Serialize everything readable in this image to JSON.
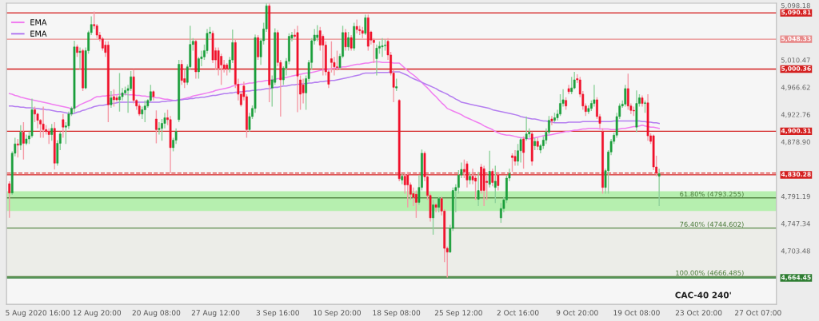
{
  "chart_data": {
    "type": "candlestick",
    "categories": [
      null,
      null,
      null,
      null,
      null,
      null,
      null,
      null,
      null,
      null,
      "5 Aug 2020 16:00",
      null,
      null,
      null,
      null,
      null,
      null,
      null,
      null,
      null,
      null,
      null,
      null,
      null,
      null,
      null,
      null,
      null,
      null,
      null,
      null,
      "12 Aug 20:00",
      null,
      null,
      null,
      null,
      null,
      null,
      null,
      null,
      null,
      null,
      null,
      null,
      null,
      null,
      null,
      null,
      null,
      null,
      null,
      null,
      "20 Aug 08:00",
      null,
      null,
      null,
      null,
      null,
      null,
      null,
      null,
      null,
      null,
      null,
      null,
      null,
      null,
      null,
      null,
      null,
      null,
      null,
      null,
      "27 Aug 12:00",
      null,
      null,
      null,
      null,
      null,
      null,
      null,
      null,
      null,
      null,
      null,
      null,
      null,
      null,
      null,
      null,
      null,
      null,
      null,
      null,
      null,
      "3 Sep 16:00",
      null,
      null,
      null,
      null,
      null,
      null,
      null,
      null,
      null,
      null,
      null,
      null,
      null,
      null,
      null,
      null,
      null,
      null,
      null,
      null,
      "10 Sep 20:00",
      null,
      null,
      null,
      null,
      null,
      null,
      null,
      null,
      null,
      null,
      null,
      null,
      null,
      null,
      null,
      null,
      null,
      null,
      null,
      null,
      "18 Sep 08:00",
      null,
      null,
      null,
      null,
      null,
      null,
      null,
      null,
      null,
      null,
      null,
      null,
      null,
      null,
      null,
      null,
      null,
      null,
      null,
      null,
      null,
      "25 Sep 12:00",
      null,
      null,
      null,
      null,
      null,
      null,
      null,
      null,
      null,
      null,
      null,
      null,
      null,
      null,
      null,
      null,
      null,
      null,
      null,
      null,
      "2 Oct 16:00",
      null,
      null,
      null,
      null,
      null,
      null,
      null,
      null,
      null,
      null,
      null,
      null,
      null,
      null,
      null,
      null,
      null,
      null,
      null,
      null,
      "9 Oct 20:00",
      null,
      null,
      null,
      null,
      null,
      null,
      null,
      null,
      null,
      null,
      null,
      null,
      null,
      null,
      null,
      null,
      null,
      null,
      null,
      null,
      "19 Oct 08:00",
      null,
      null,
      null,
      null,
      null,
      null,
      null,
      null,
      null,
      null,
      null,
      null,
      null,
      null,
      null,
      null,
      null,
      null,
      null,
      null,
      null,
      "23 Oct 20:00",
      null,
      null,
      null,
      null,
      null,
      null,
      null,
      null,
      null,
      null,
      null,
      null,
      null,
      null,
      null,
      null,
      null,
      null,
      null,
      null,
      "27 Oct 07:00",
      null,
      null,
      null,
      null,
      null,
      null
    ],
    "ohlc": [
      [
        4816,
        4820,
        4761,
        4801
      ],
      [
        4801,
        4868,
        4798,
        4865
      ],
      [
        4865,
        4890,
        4860,
        4880
      ],
      [
        4880,
        4888,
        4858,
        4878
      ],
      [
        4878,
        4910,
        4870,
        4899
      ],
      [
        4899,
        4915,
        4855,
        4881
      ],
      [
        4881,
        4895,
        4878,
        4888
      ],
      [
        4888,
        4900,
        4880,
        4893
      ],
      [
        4893,
        4953,
        4890,
        4935
      ],
      [
        4935,
        4940,
        4915,
        4928
      ],
      [
        4928,
        4930,
        4905,
        4918
      ],
      [
        4918,
        4920,
        4890,
        4912
      ],
      [
        4912,
        4940,
        4890,
        4903
      ],
      [
        4903,
        4910,
        4895,
        4900
      ],
      [
        4900,
        4905,
        4880,
        4895
      ],
      [
        4895,
        4912,
        4885,
        4905
      ],
      [
        4905,
        4915,
        4839,
        4849
      ],
      [
        4849,
        4886,
        4845,
        4881
      ],
      [
        4881,
        4900,
        4870,
        4896
      ],
      [
        4919,
        4928,
        4890,
        4907
      ],
      [
        4907,
        4915,
        4880,
        4909
      ],
      [
        4909,
        4932,
        4904,
        4928
      ],
      [
        4928,
        4940,
        4925,
        4937
      ],
      [
        4937,
        5046,
        4930,
        5036
      ],
      [
        5036,
        5040,
        5020,
        5027
      ],
      [
        5027,
        5035,
        5000,
        5029
      ],
      [
        5030,
        5033,
        4965,
        4970
      ],
      [
        4970,
        5035,
        4968,
        5030
      ],
      [
        5030,
        5062,
        5025,
        5059
      ],
      [
        5059,
        5085,
        5055,
        5072
      ],
      [
        5072,
        5093,
        5065,
        5070
      ],
      [
        5070,
        5073,
        5050,
        5055
      ],
      [
        5055,
        5060,
        5045,
        5049
      ],
      [
        5049,
        5052,
        5030,
        5034
      ],
      [
        5039,
        5045,
        5020,
        5027
      ],
      [
        5039,
        5045,
        4915,
        4943
      ],
      [
        4943,
        4965,
        4938,
        4954
      ],
      [
        4956,
        4968,
        4940,
        4951
      ],
      [
        4954,
        4958,
        4948,
        4951
      ],
      [
        4951,
        4994,
        4932,
        4956
      ],
      [
        4956,
        4970,
        4950,
        4962
      ],
      [
        4962,
        4972,
        4958,
        4966
      ],
      [
        4966,
        4975,
        4930,
        4969
      ],
      [
        4969,
        4997,
        4965,
        4988
      ],
      [
        4988,
        5000,
        4945,
        4950
      ],
      [
        4950,
        4952,
        4935,
        4941
      ],
      [
        4941,
        4945,
        4925,
        4928
      ],
      [
        4928,
        4940,
        4920,
        4935
      ],
      [
        4935,
        4950,
        4915,
        4941
      ],
      [
        4941,
        4952,
        4938,
        4950
      ],
      [
        4950,
        4975,
        4948,
        4964
      ],
      [
        4964,
        4966,
        4950,
        4956
      ],
      [
        4920,
        4934,
        4881,
        4903
      ],
      [
        4903,
        4915,
        4895,
        4905
      ],
      [
        4905,
        4920,
        4885,
        4913
      ],
      [
        4913,
        4930,
        4905,
        4922
      ],
      [
        4922,
        4935,
        4910,
        4919
      ],
      [
        4919,
        4925,
        4833,
        4874
      ],
      [
        4874,
        4890,
        4868,
        4886
      ],
      [
        4886,
        4905,
        4880,
        4900
      ],
      [
        4919,
        5015,
        4915,
        5008
      ],
      [
        5008,
        5015,
        4975,
        4982
      ],
      [
        4985,
        5000,
        4970,
        4979
      ],
      [
        4979,
        5008,
        4975,
        5004
      ],
      [
        5004,
        5070,
        5000,
        5040
      ],
      [
        5040,
        5050,
        5030,
        5045
      ],
      [
        5045,
        5048,
        4985,
        4996
      ],
      [
        4996,
        5020,
        4985,
        5017
      ],
      [
        5017,
        5030,
        5005,
        5020
      ],
      [
        5020,
        5040,
        5015,
        5030
      ],
      [
        5030,
        5065,
        5025,
        5058
      ],
      [
        5058,
        5068,
        5050,
        5060
      ],
      [
        5058,
        5062,
        5010,
        5015
      ],
      [
        5030,
        5035,
        5000,
        5015
      ],
      [
        5030,
        5035,
        4990,
        5002
      ],
      [
        5021,
        5025,
        4975,
        5007
      ],
      [
        5007,
        5015,
        4995,
        5001
      ],
      [
        5007,
        5010,
        4990,
        5001
      ],
      [
        5001,
        5020,
        4995,
        5015
      ],
      [
        5015,
        5064,
        5010,
        5043
      ],
      [
        5043,
        5048,
        4970,
        4976
      ],
      [
        4976,
        4985,
        4950,
        4960
      ],
      [
        4960,
        4965,
        4940,
        4943
      ],
      [
        4973,
        4980,
        4950,
        4956
      ],
      [
        4956,
        4960,
        4890,
        4903
      ],
      [
        4903,
        4930,
        4900,
        4924
      ],
      [
        4924,
        4942,
        4920,
        4937
      ],
      [
        4937,
        5056,
        4930,
        5051
      ],
      [
        5051,
        5055,
        5015,
        5020
      ],
      [
        5020,
        5050,
        5007,
        5046
      ],
      [
        5046,
        5075,
        5040,
        5065
      ],
      [
        5065,
        5106,
        5060,
        5102
      ],
      [
        5102,
        5106,
        4947,
        4975
      ],
      [
        4970,
        4990,
        4940,
        4983
      ],
      [
        4979,
        5066,
        4975,
        5059
      ],
      [
        5059,
        5063,
        5005,
        5011
      ],
      [
        5011,
        5015,
        4924,
        4983
      ],
      [
        4983,
        5005,
        4975,
        5002
      ],
      [
        5002,
        5018,
        4990,
        5013
      ],
      [
        5013,
        5058,
        5008,
        5053
      ],
      [
        5050,
        5060,
        5045,
        5055
      ],
      [
        5055,
        5065,
        5050,
        5053
      ],
      [
        5059,
        5070,
        4931,
        4989
      ],
      [
        4983,
        4990,
        4935,
        4960
      ],
      [
        4975,
        4985,
        4945,
        4962
      ],
      [
        4962,
        4990,
        4935,
        4985
      ],
      [
        4985,
        5015,
        4980,
        5011
      ],
      [
        5011,
        5050,
        5000,
        5046
      ],
      [
        5046,
        5065,
        5040,
        5055
      ],
      [
        5051,
        5071,
        5045,
        5055
      ],
      [
        5062,
        5068,
        5030,
        5039
      ],
      [
        5053,
        5056,
        4990,
        5039
      ],
      [
        5039,
        5045,
        4990,
        4996
      ],
      [
        4996,
        5000,
        4970,
        4976
      ],
      [
        5017,
        5045,
        4995,
        5011
      ],
      [
        5011,
        5020,
        4990,
        5004
      ],
      [
        5004,
        5030,
        4998,
        5003
      ],
      [
        5003,
        5025,
        5000,
        5021
      ],
      [
        5021,
        5070,
        5018,
        5059
      ],
      [
        5059,
        5065,
        5030,
        5036
      ],
      [
        5036,
        5060,
        5030,
        5051
      ],
      [
        5051,
        5055,
        5030,
        5034
      ],
      [
        5034,
        5075,
        5030,
        5069
      ],
      [
        5069,
        5080,
        5058,
        5064
      ],
      [
        5064,
        5070,
        5055,
        5062
      ],
      [
        5062,
        5068,
        5050,
        5058
      ],
      [
        5058,
        5088,
        5055,
        5083
      ],
      [
        5083,
        5088,
        5030,
        5037
      ],
      [
        5060,
        5062,
        5040,
        5047
      ],
      [
        5047,
        5050,
        5010,
        5043
      ],
      [
        5017,
        5040,
        4990,
        5034
      ],
      [
        5034,
        5045,
        5025,
        5037
      ],
      [
        5036,
        5050,
        5020,
        5038
      ],
      [
        5038,
        5048,
        5030,
        5039
      ],
      [
        5045,
        5050,
        5015,
        5023
      ],
      [
        5023,
        5028,
        4990,
        4994
      ],
      [
        4994,
        5000,
        4947,
        4971
      ],
      [
        4970,
        4985,
        4965,
        4972
      ],
      [
        4950,
        4952,
        4820,
        4824
      ],
      [
        4822,
        4832,
        4815,
        4828
      ],
      [
        4828,
        4832,
        4800,
        4814
      ],
      [
        4830,
        4835,
        4778,
        4814
      ],
      [
        4814,
        4818,
        4790,
        4799
      ],
      [
        4800,
        4810,
        4780,
        4794
      ],
      [
        4799,
        4805,
        4761,
        4786
      ],
      [
        4786,
        4830,
        4782,
        4810
      ],
      [
        4810,
        4871,
        4805,
        4865
      ],
      [
        4865,
        4868,
        4820,
        4827
      ],
      [
        4827,
        4830,
        4790,
        4797
      ],
      [
        4797,
        4800,
        4755,
        4761
      ],
      [
        4761,
        4790,
        4734,
        4782
      ],
      [
        4782,
        4785,
        4770,
        4778
      ],
      [
        4778,
        4795,
        4770,
        4792
      ],
      [
        4792,
        4795,
        4765,
        4772
      ],
      [
        4772,
        4775,
        4690,
        4712
      ],
      [
        4712,
        4715,
        4665,
        4706
      ],
      [
        4706,
        4750,
        4705,
        4744
      ],
      [
        4744,
        4810,
        4740,
        4805
      ],
      [
        4805,
        4815,
        4770,
        4810
      ],
      [
        4810,
        4838,
        4800,
        4830
      ],
      [
        4830,
        4850,
        4825,
        4839
      ],
      [
        4839,
        4855,
        4825,
        4835
      ],
      [
        4848,
        4852,
        4810,
        4822
      ],
      [
        4822,
        4835,
        4815,
        4828
      ],
      [
        4828,
        4840,
        4815,
        4822
      ],
      [
        4825,
        4830,
        4790,
        4820
      ],
      [
        4791,
        4835,
        4780,
        4805
      ],
      [
        4843,
        4848,
        4800,
        4805
      ],
      [
        4840,
        4845,
        4780,
        4805
      ],
      [
        4820,
        4830,
        4790,
        4818
      ],
      [
        4815,
        4869,
        4810,
        4836
      ],
      [
        4836,
        4840,
        4812,
        4818
      ],
      [
        4810,
        4845,
        4785,
        4820
      ],
      [
        4830,
        4835,
        4805,
        4813
      ],
      [
        4761,
        4785,
        4753,
        4776
      ],
      [
        4776,
        4795,
        4770,
        4790
      ],
      [
        4790,
        4830,
        4785,
        4825
      ],
      [
        4825,
        4840,
        4820,
        4832
      ],
      [
        4861,
        4865,
        4835,
        4858
      ],
      [
        4860,
        4870,
        4845,
        4852
      ],
      [
        4852,
        4880,
        4845,
        4869
      ],
      [
        4869,
        4890,
        4850,
        4887
      ],
      [
        4888,
        4892,
        4840,
        4866
      ],
      [
        4888,
        4924,
        4885,
        4896
      ],
      [
        4896,
        4905,
        4890,
        4899
      ],
      [
        4896,
        4900,
        4845,
        4852
      ],
      [
        4877,
        4890,
        4870,
        4884
      ],
      [
        4884,
        4890,
        4870,
        4876
      ],
      [
        4870,
        4880,
        4865,
        4877
      ],
      [
        4877,
        4892,
        4872,
        4886
      ],
      [
        4886,
        4905,
        4880,
        4899
      ],
      [
        4899,
        4925,
        4895,
        4918
      ],
      [
        4920,
        4925,
        4910,
        4917
      ],
      [
        4918,
        4930,
        4915,
        4922
      ],
      [
        4922,
        4935,
        4918,
        4928
      ],
      [
        4928,
        4960,
        4925,
        4945
      ],
      [
        4945,
        4968,
        4940,
        4951
      ],
      [
        4950,
        4955,
        4935,
        4941
      ],
      [
        4969,
        4975,
        4960,
        4964
      ],
      [
        4964,
        4988,
        4960,
        4970
      ],
      [
        4970,
        4996,
        4968,
        4983
      ],
      [
        4985,
        4992,
        4978,
        4983
      ],
      [
        4983,
        4988,
        4955,
        4960
      ],
      [
        4960,
        4965,
        4935,
        4941
      ],
      [
        4941,
        4945,
        4925,
        4932
      ],
      [
        4932,
        4942,
        4928,
        4937
      ],
      [
        4937,
        4950,
        4933,
        4945
      ],
      [
        4945,
        4975,
        4940,
        4951
      ],
      [
        4951,
        4955,
        4920,
        4924
      ],
      [
        4924,
        4928,
        4905,
        4913
      ],
      [
        4900,
        4905,
        4800,
        4810
      ],
      [
        4810,
        4840,
        4800,
        4837
      ],
      [
        4837,
        4870,
        4800,
        4867
      ],
      [
        4867,
        4888,
        4862,
        4884
      ],
      [
        4884,
        4898,
        4880,
        4894
      ],
      [
        4894,
        4930,
        4890,
        4924
      ],
      [
        4924,
        4945,
        4920,
        4941
      ],
      [
        4941,
        4950,
        4938,
        4944
      ],
      [
        4944,
        4975,
        4940,
        4969
      ],
      [
        4969,
        4993,
        4935,
        4941
      ],
      [
        4941,
        4945,
        4928,
        4934
      ],
      [
        4934,
        4940,
        4925,
        4933
      ],
      [
        4907,
        4966,
        4899,
        4945
      ],
      [
        4945,
        4960,
        4940,
        4954
      ],
      [
        4954,
        4958,
        4940,
        4945
      ],
      [
        4945,
        4950,
        4930,
        4946
      ],
      [
        4946,
        4960,
        4885,
        4893
      ],
      [
        4893,
        4897,
        4880,
        4884
      ],
      [
        4893,
        4895,
        4838,
        4843
      ],
      [
        4843,
        4861,
        4828,
        4833
      ],
      [
        4828,
        4840,
        4780,
        4832
      ],
      null,
      null,
      null,
      null,
      null,
      null,
      null,
      null,
      null,
      null,
      null,
      null,
      null,
      null,
      null,
      null,
      null,
      null,
      null,
      null,
      null,
      null,
      null,
      null,
      null,
      null,
      null,
      null,
      null,
      null,
      null,
      null,
      null,
      null,
      null,
      null,
      null,
      null,
      null,
      null,
      null
    ],
    "series": [
      {
        "name": "EMA",
        "type": "line",
        "color": "#f07ef0",
        "values": [
          4961,
          4960,
          4958,
          4957,
          4955,
          4954,
          4953,
          4952,
          4951,
          4950,
          4949,
          4948,
          4947,
          4946,
          4945,
          4944,
          4943,
          4942,
          4941,
          4940,
          4939,
          4938,
          4936,
          4938,
          4940,
          4943,
          4945,
          4947,
          4949,
          4951,
          4954,
          4956,
          4956,
          4957,
          4957,
          4958,
          4958,
          4959,
          4959,
          4960,
          4960,
          4960,
          4959,
          4959,
          4959,
          4958,
          4958,
          4957,
          4957,
          4956,
          4956,
          4955,
          4954,
          4954,
          4953,
          4952,
          4952,
          4951,
          4950,
          4950,
          4951,
          4952,
          4953,
          4954,
          4955,
          4957,
          4958,
          4959,
          4960,
          4961,
          4962,
          4963,
          4964,
          4966,
          4967,
          4968,
          4969,
          4970,
          4971,
          4973,
          4974,
          4975,
          4976,
          4976,
          4977,
          4978,
          4978,
          4979,
          4980,
          4980,
          4981,
          4982,
          4982,
          4983,
          4984,
          4985,
          4985,
          4986,
          4987,
          4988,
          4989,
          4990,
          4991,
          4992,
          4993,
          4994,
          4994,
          4995,
          4996,
          4997,
          4998,
          4999,
          4999,
          5000,
          5001,
          5002,
          5002,
          5003,
          5004,
          5004,
          5005,
          5006,
          5007,
          5008,
          5008,
          5009,
          5010,
          5010,
          5011,
          5012,
          5012,
          5012,
          5011,
          5011,
          5011,
          5011,
          5010,
          5010,
          5010,
          5006,
          5002,
          4998,
          4994,
          4991,
          4987,
          4983,
          4979,
          4974,
          4970,
          4965,
          4960,
          4956,
          4951,
          4946,
          4942,
          4937,
          4935,
          4933,
          4931,
          4929,
          4927,
          4924,
          4922,
          4920,
          4918,
          4916,
          4914,
          4912,
          4909,
          4907,
          4905,
          4903,
          4900,
          4898,
          4896,
          4895,
          4894,
          4894,
          4893,
          4892,
          4891,
          4890,
          4890,
          4889,
          4888,
          4889,
          4890,
          4891,
          4892,
          4893,
          4894,
          4894,
          4895,
          4896,
          4897,
          4898,
          4899,
          4900,
          4900,
          4901,
          4902,
          4902,
          4903,
          4904,
          4904,
          4905,
          4905,
          4905,
          4905,
          4904,
          4904,
          4904,
          4904,
          4903,
          4903,
          4903,
          4904,
          4905,
          4905,
          4906,
          4907,
          4908,
          4908,
          4909,
          4910,
          4909,
          4908,
          4907,
          4907,
          4906,
          4905,
          null,
          null,
          null,
          null,
          null,
          null,
          null,
          null,
          null,
          null,
          null,
          null,
          null,
          null,
          null,
          null,
          null,
          null,
          null,
          null,
          null,
          null,
          null,
          null,
          null,
          null,
          null,
          null,
          null,
          null,
          null,
          null,
          null,
          null,
          null,
          null,
          null,
          null,
          null,
          null,
          null
        ]
      },
      {
        "name": "EMA",
        "type": "line",
        "color": "#b47ef0",
        "values": [
          4941,
          4941,
          4940,
          4940,
          4939,
          4939,
          4938,
          4938,
          4938,
          4937,
          4937,
          4936,
          4936,
          4935,
          4935,
          4934,
          4933,
          4932,
          4932,
          4931,
          4930,
          4929,
          4928,
          4929,
          4931,
          4932,
          4934,
          4935,
          4937,
          4938,
          4940,
          4941,
          4942,
          4942,
          4943,
          4944,
          4945,
          4945,
          4946,
          4947,
          4947,
          4947,
          4947,
          4947,
          4947,
          4947,
          4947,
          4947,
          4947,
          4947,
          4947,
          4947,
          4947,
          4947,
          4948,
          4948,
          4949,
          4949,
          4950,
          4950,
          4951,
          4951,
          4952,
          4952,
          4953,
          4953,
          4954,
          4954,
          4955,
          4955,
          4956,
          4957,
          4958,
          4958,
          4959,
          4960,
          4961,
          4961,
          4962,
          4962,
          4963,
          4963,
          4964,
          4964,
          4965,
          4965,
          4966,
          4966,
          4967,
          4967,
          4968,
          4969,
          4969,
          4970,
          4971,
          4971,
          4972,
          4973,
          4973,
          4974,
          4975,
          4975,
          4976,
          4976,
          4977,
          4977,
          4978,
          4978,
          4979,
          4979,
          4980,
          4980,
          4981,
          4981,
          4982,
          4982,
          4983,
          4984,
          4985,
          4986,
          4987,
          4988,
          4989,
          4990,
          4991,
          4993,
          4994,
          4994,
          4994,
          4994,
          4995,
          4995,
          4995,
          4995,
          4995,
          4996,
          4996,
          4996,
          4996,
          4994,
          4992,
          4990,
          4987,
          4985,
          4983,
          4981,
          4979,
          4977,
          4975,
          4973,
          4971,
          4969,
          4966,
          4964,
          4962,
          4960,
          4957,
          4955,
          4952,
          4950,
          4947,
          4946,
          4945,
          4944,
          4943,
          4942,
          4941,
          4940,
          4939,
          4938,
          4937,
          4935,
          4934,
          4933,
          4932,
          4931,
          4930,
          4929,
          4928,
          4927,
          4926,
          4924,
          4923,
          4922,
          4921,
          4920,
          4920,
          4919,
          4918,
          4917,
          4917,
          4916,
          4915,
          4914,
          4914,
          4914,
          4914,
          4914,
          4915,
          4915,
          4915,
          4915,
          4915,
          4916,
          4916,
          4916,
          4916,
          4916,
          4916,
          4916,
          4916,
          4916,
          4916,
          4916,
          4917,
          4917,
          4917,
          4917,
          4917,
          4917,
          4917,
          4917,
          4917,
          4917,
          4916,
          4916,
          4915,
          4915,
          4914,
          4914,
          4913,
          null,
          null,
          null,
          null,
          null,
          null,
          null,
          null,
          null,
          null,
          null,
          null,
          null,
          null,
          null,
          null,
          null,
          null,
          null,
          null,
          null,
          null,
          null,
          null,
          null,
          null,
          null,
          null,
          null,
          null,
          null,
          null,
          null,
          null,
          null,
          null,
          null,
          null,
          null,
          null,
          null
        ]
      }
    ],
    "ylim": [
      4622,
      5106.3
    ],
    "yticks": [
      {
        "value": 5098.18,
        "label": "5,098.18"
      },
      {
        "value": 5010.47,
        "label": "5,010.47"
      },
      {
        "value": 4966.62,
        "label": "4,966.62"
      },
      {
        "value": 4922.76,
        "label": "4,922.76"
      },
      {
        "value": 4878.9,
        "label": "4,878.90"
      },
      {
        "value": 4791.19,
        "label": "4,791.19"
      },
      {
        "value": 4747.34,
        "label": "4,747.34"
      },
      {
        "value": 4703.48,
        "label": "4,703.48"
      }
    ],
    "bands": [
      {
        "axis": "y",
        "from": 4666.485,
        "to": 4793.255,
        "color": "#ecede8"
      },
      {
        "axis": "y",
        "from": 4772,
        "to": 4804,
        "color": "#b6efaf"
      }
    ],
    "ref_lines": [
      {
        "axis": "y",
        "value": 5090.81,
        "label": "5,090.81",
        "color": "#d42020"
      },
      {
        "axis": "y",
        "value": 5048.33,
        "label": "5,048.33",
        "color": "#e88a8a"
      },
      {
        "axis": "y",
        "value": 5000.36,
        "label": "5,000.36",
        "color": "#d42020"
      },
      {
        "axis": "y",
        "value": 4900.31,
        "label": "4,900.31",
        "color": "#d42020"
      },
      {
        "axis": "y",
        "value": 4830.28,
        "label": "4,830.28",
        "color": "#d42020"
      },
      {
        "axis": "y",
        "value": 4833,
        "color": "#e05050",
        "line_style": "dashed"
      },
      {
        "axis": "y",
        "value": 4793.255,
        "color": "#5a8a4a"
      },
      {
        "axis": "y",
        "value": 4744.602,
        "color": "#5a8a4a"
      },
      {
        "axis": "y",
        "value": 4666.485,
        "color": "#5a8a4a"
      },
      {
        "axis": "y",
        "value": 4664.45,
        "label": "4,664.45",
        "color": "#2e7d32"
      }
    ],
    "annotations": [
      {
        "text": "61.80% (4793.255)",
        "y": 4793.255
      },
      {
        "text": "76.40% (4744.602)",
        "y": 4744.602
      },
      {
        "text": "100.00% (4666.485)",
        "y": 4666.485
      },
      "CAC-40 240'"
    ],
    "legend": "top left",
    "grid": false
  }
}
